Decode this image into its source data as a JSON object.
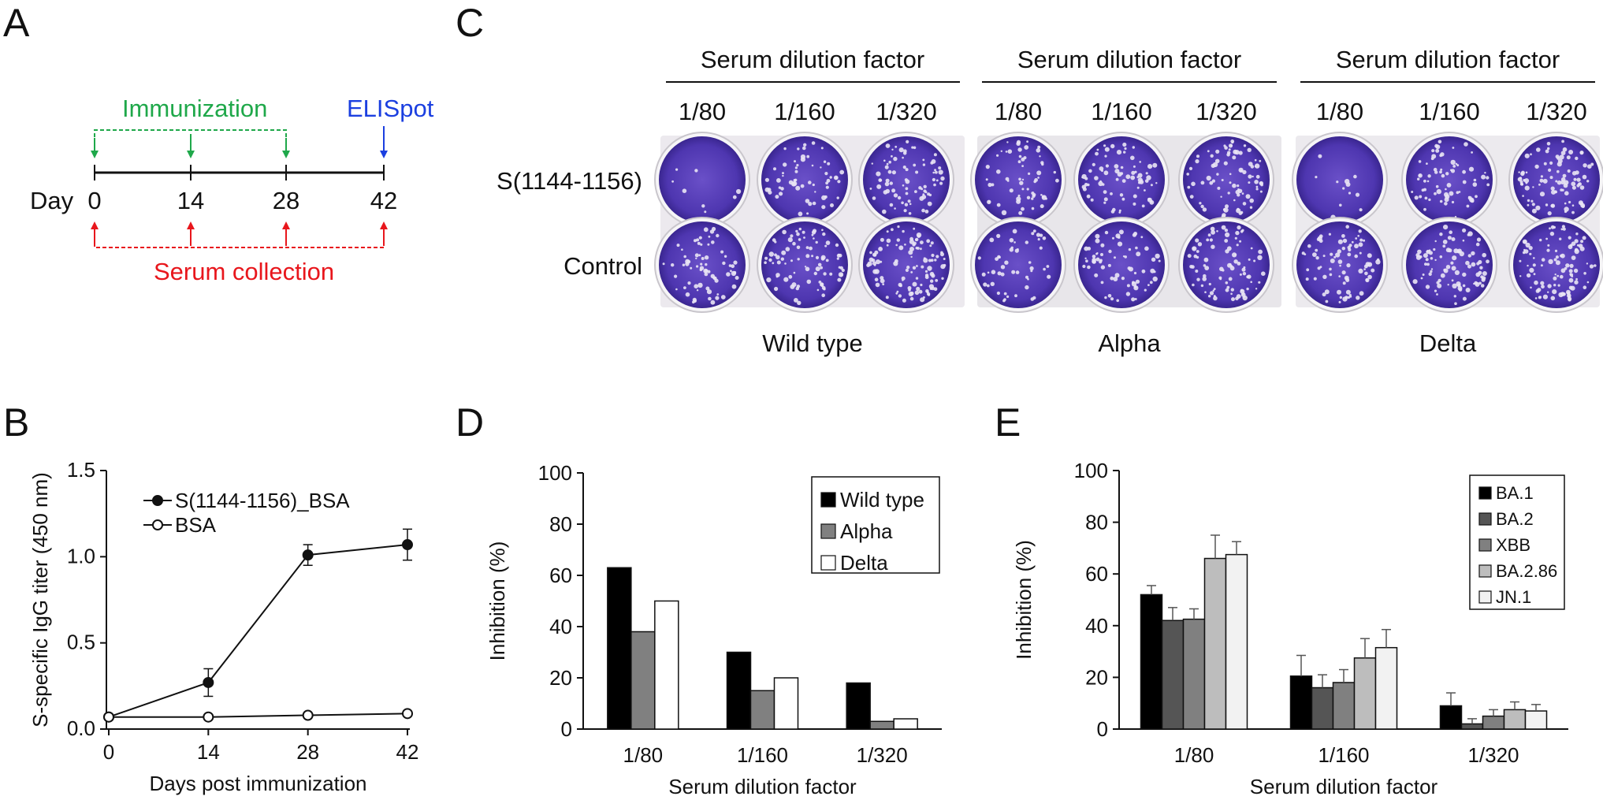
{
  "colors": {
    "immunization": "#1fa84a",
    "elispot": "#1b3fe0",
    "serum": "#e8161c",
    "well": "#5a3fb8",
    "bar_shades": [
      "#000000",
      "#555555",
      "#808080",
      "#bdbdbd",
      "#f2f2f2",
      "#ffffff"
    ]
  },
  "panel_a": {
    "letter": "A",
    "immunization_label": "Immunization",
    "elispot_label": "ELISpot",
    "day_label": "Day",
    "days": [
      "0",
      "14",
      "28",
      "42"
    ],
    "serum_label": "Serum collection"
  },
  "panel_c": {
    "letter": "C",
    "group_header": "Serum dilution factor",
    "dilutions": [
      "1/80",
      "1/160",
      "1/320"
    ],
    "rows": [
      "S(1144-1156)",
      "Control"
    ],
    "variants": [
      "Wild type",
      "Alpha",
      "Delta"
    ]
  },
  "panel_b": {
    "letter": "B"
  },
  "panel_d": {
    "letter": "D"
  },
  "panel_e": {
    "letter": "E"
  },
  "chart_data": [
    {
      "panel": "B",
      "type": "line",
      "xlabel": "Days post immunization",
      "ylabel": "S-specific IgG titer (450 nm)",
      "x": [
        0,
        14,
        28,
        42
      ],
      "xticks": [
        "0",
        "14",
        "28",
        "42"
      ],
      "ylim": [
        0,
        1.5
      ],
      "yticks": [
        "0.0",
        "0.5",
        "1.0",
        "1.5"
      ],
      "legend_position": "top-left",
      "series": [
        {
          "name": "S(1144-1156)_BSA",
          "marker": "filled-circle",
          "values": [
            0.07,
            0.27,
            1.01,
            1.07
          ],
          "error": [
            0.0,
            0.08,
            0.06,
            0.09
          ]
        },
        {
          "name": "BSA",
          "marker": "open-circle",
          "values": [
            0.07,
            0.07,
            0.08,
            0.09
          ],
          "error": [
            0,
            0,
            0,
            0
          ]
        }
      ]
    },
    {
      "panel": "D",
      "type": "bar",
      "xlabel": "Serum dilution factor",
      "ylabel": "Inhibition (%)",
      "categories": [
        "1/80",
        "1/160",
        "1/320"
      ],
      "ylim": [
        0,
        100
      ],
      "yticks": [
        "0",
        "20",
        "40",
        "60",
        "80",
        "100"
      ],
      "legend_position": "top-right",
      "series": [
        {
          "name": "Wild type",
          "color": "#000000",
          "values": [
            63,
            30,
            18
          ]
        },
        {
          "name": "Alpha",
          "color": "#808080",
          "values": [
            38,
            15,
            3
          ]
        },
        {
          "name": "Delta",
          "color": "#ffffff",
          "values": [
            50,
            20,
            4
          ]
        }
      ]
    },
    {
      "panel": "E",
      "type": "bar",
      "xlabel": "Serum dilution factor",
      "ylabel": "Inhibition (%)",
      "categories": [
        "1/80",
        "1/160",
        "1/320"
      ],
      "ylim": [
        0,
        100
      ],
      "yticks": [
        "0",
        "20",
        "40",
        "60",
        "80",
        "100"
      ],
      "legend_position": "top-right",
      "series": [
        {
          "name": "BA.1",
          "color": "#000000",
          "values": [
            52,
            20.5,
            9
          ],
          "error": [
            3.5,
            8,
            5
          ]
        },
        {
          "name": "BA.2",
          "color": "#555555",
          "values": [
            42,
            16,
            2
          ],
          "error": [
            5,
            5,
            2
          ]
        },
        {
          "name": "XBB",
          "color": "#808080",
          "values": [
            42.5,
            18,
            5
          ],
          "error": [
            4,
            5,
            2.5
          ]
        },
        {
          "name": "BA.2.86",
          "color": "#bdbdbd",
          "values": [
            66,
            27.5,
            7.5
          ],
          "error": [
            9,
            7.5,
            3
          ]
        },
        {
          "name": "JN.1",
          "color": "#f2f2f2",
          "values": [
            67.5,
            31.5,
            7
          ],
          "error": [
            5,
            7,
            2.5
          ]
        }
      ]
    }
  ]
}
